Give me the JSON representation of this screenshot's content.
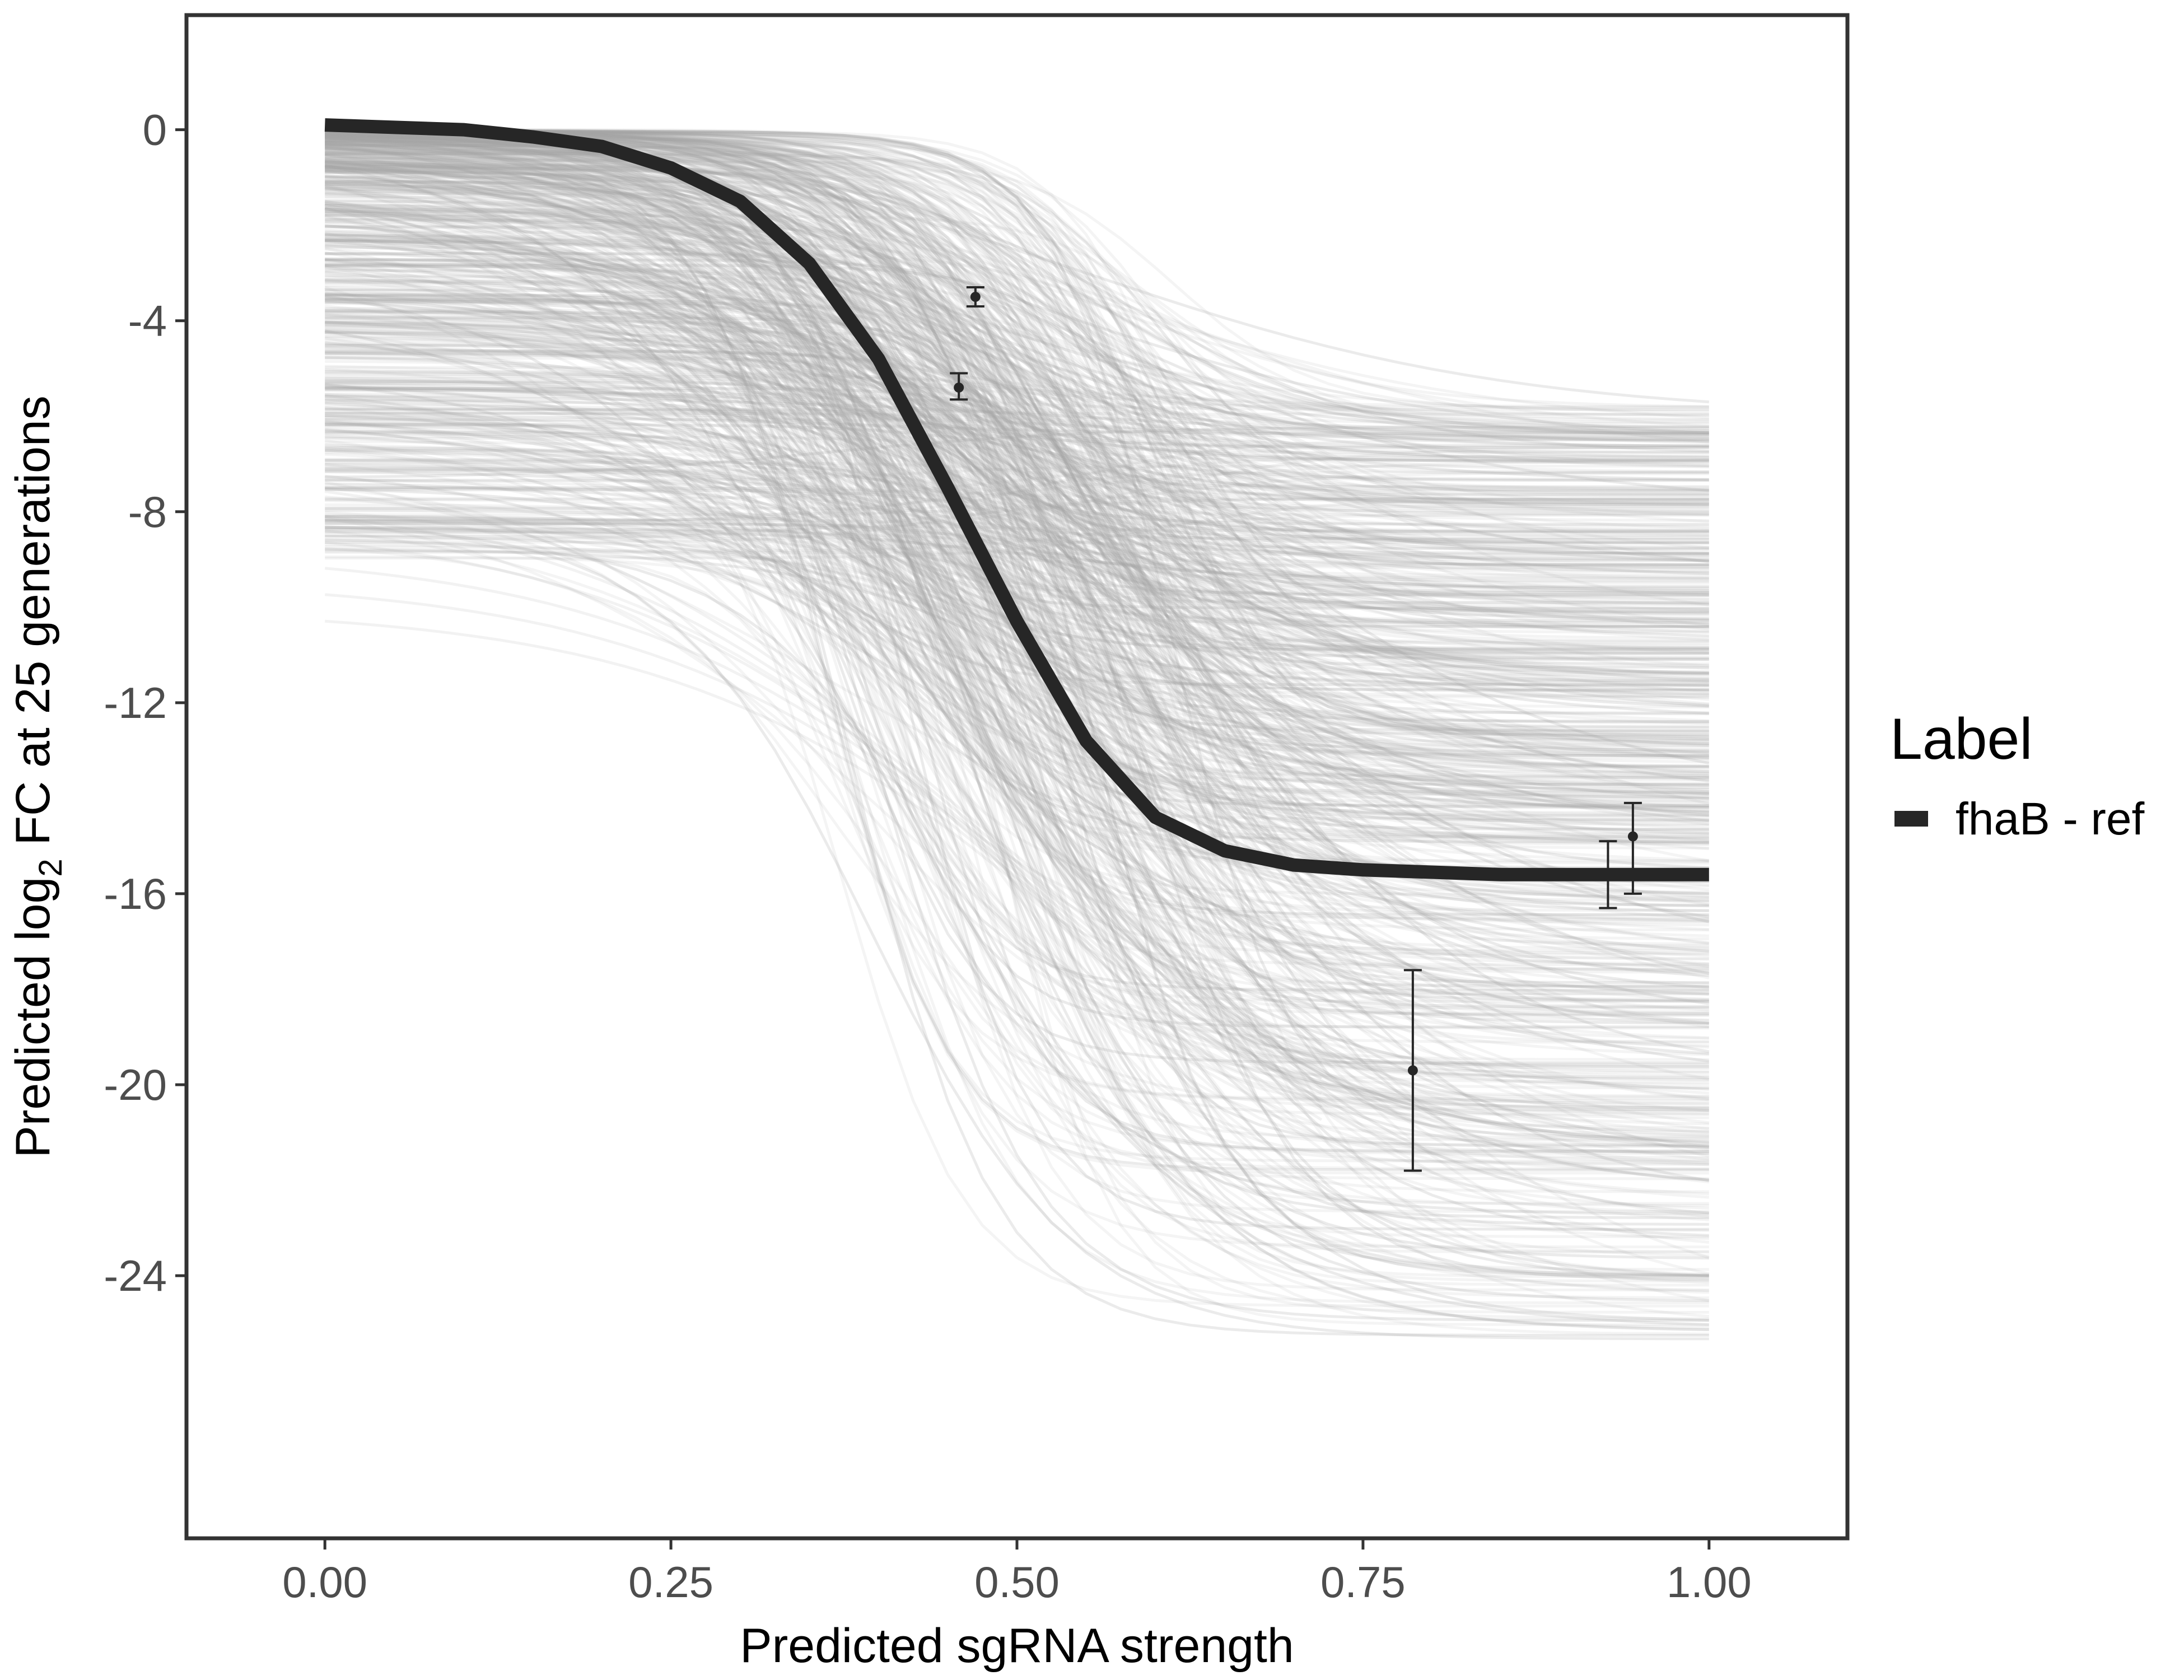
{
  "chart_data": {
    "type": "line",
    "xlabel": "Predicted sgRNA strength",
    "ylabel": {
      "prefix": "Predicted  log",
      "subscript": "2",
      "suffix": " FC at 25 generations"
    },
    "xlim": [
      -0.1,
      1.1
    ],
    "ylim": [
      -29.5,
      2.4
    ],
    "x_ticks": [
      0.0,
      0.25,
      0.5,
      0.75,
      1.0
    ],
    "x_tick_labels": [
      "0.00",
      "0.25",
      "0.50",
      "0.75",
      "1.00"
    ],
    "y_ticks": [
      0,
      -4,
      -8,
      -12,
      -16,
      -20,
      -24
    ],
    "y_tick_labels": [
      "0",
      "-4",
      "-8",
      "-12",
      "-16",
      "-20",
      "-24"
    ],
    "grid": false,
    "legend": {
      "title": "Label",
      "position": "right",
      "entries": [
        {
          "label": "fhaB - ref",
          "color": "#262626"
        }
      ]
    },
    "series": [
      {
        "name": "fhaB - ref",
        "color": "#262626",
        "x": [
          0.0,
          0.05,
          0.1,
          0.15,
          0.2,
          0.25,
          0.3,
          0.35,
          0.4,
          0.45,
          0.5,
          0.55,
          0.6,
          0.65,
          0.7,
          0.75,
          0.8,
          0.85,
          0.9,
          0.95,
          1.0
        ],
        "y": [
          0.1,
          0.05,
          0.0,
          -0.15,
          -0.35,
          -0.8,
          -1.5,
          -2.8,
          -4.8,
          -7.5,
          -10.3,
          -12.8,
          -14.4,
          -15.1,
          -15.4,
          -15.5,
          -15.55,
          -15.6,
          -15.6,
          -15.6,
          -15.6
        ]
      }
    ],
    "posterior_curves": {
      "color": "#a6a6a6",
      "description_count": 1000,
      "start_y_range": [
        -9.5,
        0.1
      ],
      "end_y_range": [
        -25.5,
        -5.8
      ]
    },
    "points": [
      {
        "x": 0.47,
        "y": -3.5,
        "ymin": -3.7,
        "ymax": -3.3
      },
      {
        "x": 0.458,
        "y": -5.4,
        "ymin": -5.65,
        "ymax": -5.1
      },
      {
        "x": 0.786,
        "y": -19.7,
        "ymin": -21.8,
        "ymax": -17.6
      },
      {
        "x": 0.927,
        "y": -15.6,
        "ymin": -16.3,
        "ymax": -14.9
      },
      {
        "x": 0.945,
        "y": -14.8,
        "ymin": -16.0,
        "ymax": -14.1
      }
    ]
  }
}
